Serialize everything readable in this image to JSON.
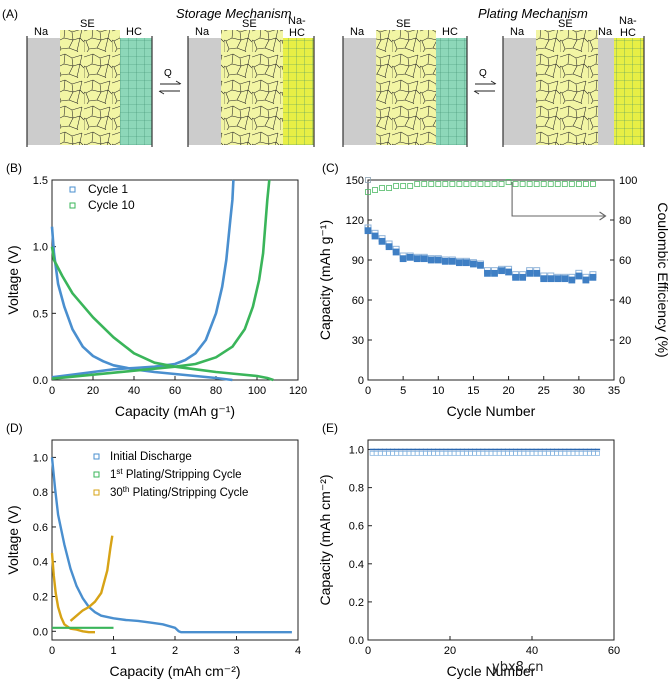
{
  "panel_a": {
    "label": "(A)",
    "storage_title": "Storage Mechanism",
    "plating_title": "Plating Mechanism",
    "na": "Na",
    "se": "SE",
    "hc": "HC",
    "na_hc": "Na-\nHC",
    "q": "Q",
    "colors": {
      "se": "#f2f5a4",
      "hc": "#8dd7b9",
      "na_hc": "#e8ef45",
      "na": "#cccccc"
    }
  },
  "chart_data": [
    {
      "id": "B",
      "panel_label": "(B)",
      "type": "scatter",
      "xlabel": "Capacity (mAh g⁻¹)",
      "ylabel": "Voltage (V)",
      "xlim": [
        0,
        120
      ],
      "ylim": [
        0,
        1.5
      ],
      "xticks": [
        0,
        20,
        40,
        60,
        80,
        100,
        120
      ],
      "yticks": [
        0.0,
        0.5,
        1.0,
        1.5
      ],
      "legend_position": "top-left",
      "series": [
        {
          "name": "Cycle 1",
          "color": "#4a8fcf",
          "discharge": [
            [
              0,
              1.15
            ],
            [
              1,
              0.95
            ],
            [
              3,
              0.72
            ],
            [
              6,
              0.55
            ],
            [
              10,
              0.38
            ],
            [
              15,
              0.25
            ],
            [
              20,
              0.18
            ],
            [
              25,
              0.14
            ],
            [
              30,
              0.11
            ],
            [
              40,
              0.08
            ],
            [
              50,
              0.06
            ],
            [
              60,
              0.045
            ],
            [
              70,
              0.03
            ],
            [
              80,
              0.015
            ],
            [
              88,
              0.0
            ]
          ],
          "charge": [
            [
              0,
              0.02
            ],
            [
              10,
              0.04
            ],
            [
              20,
              0.06
            ],
            [
              30,
              0.08
            ],
            [
              40,
              0.09
            ],
            [
              50,
              0.1
            ],
            [
              60,
              0.12
            ],
            [
              65,
              0.15
            ],
            [
              70,
              0.2
            ],
            [
              75,
              0.3
            ],
            [
              80,
              0.5
            ],
            [
              83,
              0.7
            ],
            [
              85,
              0.9
            ],
            [
              86,
              1.05
            ],
            [
              87,
              1.2
            ],
            [
              88,
              1.35
            ],
            [
              88.5,
              1.5
            ]
          ]
        },
        {
          "name": "Cycle 10",
          "color": "#3ab55a",
          "discharge": [
            [
              0,
              1.0
            ],
            [
              1,
              0.9
            ],
            [
              5,
              0.78
            ],
            [
              10,
              0.65
            ],
            [
              20,
              0.47
            ],
            [
              30,
              0.32
            ],
            [
              40,
              0.2
            ],
            [
              50,
              0.13
            ],
            [
              60,
              0.1
            ],
            [
              70,
              0.08
            ],
            [
              80,
              0.06
            ],
            [
              90,
              0.045
            ],
            [
              100,
              0.03
            ],
            [
              105,
              0.015
            ],
            [
              108,
              0.0
            ]
          ],
          "charge": [
            [
              0,
              0.01
            ],
            [
              20,
              0.04
            ],
            [
              40,
              0.07
            ],
            [
              60,
              0.1
            ],
            [
              70,
              0.12
            ],
            [
              80,
              0.17
            ],
            [
              88,
              0.25
            ],
            [
              94,
              0.38
            ],
            [
              98,
              0.55
            ],
            [
              101,
              0.75
            ],
            [
              103,
              0.95
            ],
            [
              104,
              1.15
            ],
            [
              105,
              1.35
            ],
            [
              106,
              1.5
            ]
          ]
        }
      ]
    },
    {
      "id": "C",
      "panel_label": "(C)",
      "type": "scatter",
      "xlabel": "Cycle Number",
      "ylabel": "Capacity (mAh g⁻¹)",
      "y2label": "Coulombic Efficiency (%)",
      "xlim": [
        0,
        35
      ],
      "ylim": [
        0,
        150
      ],
      "y2lim": [
        0,
        100
      ],
      "xticks": [
        0,
        5,
        10,
        15,
        20,
        25,
        30,
        35
      ],
      "yticks": [
        0,
        30,
        60,
        90,
        120,
        150
      ],
      "y2ticks": [
        0,
        20,
        40,
        60,
        80,
        100
      ],
      "capacity_color": "#3f7fc4",
      "ce_color": "#4fba66",
      "capacity_charge": [
        [
          0,
          112
        ],
        [
          1,
          108
        ],
        [
          2,
          104
        ],
        [
          3,
          100
        ],
        [
          4,
          96
        ],
        [
          5,
          91
        ],
        [
          6,
          92
        ],
        [
          7,
          91
        ],
        [
          8,
          91
        ],
        [
          9,
          90
        ],
        [
          10,
          90
        ],
        [
          11,
          89
        ],
        [
          12,
          89
        ],
        [
          13,
          88
        ],
        [
          14,
          88
        ],
        [
          15,
          87
        ],
        [
          16,
          86
        ],
        [
          17,
          80
        ],
        [
          18,
          80
        ],
        [
          19,
          82
        ],
        [
          20,
          81
        ],
        [
          21,
          77
        ],
        [
          22,
          77
        ],
        [
          23,
          80
        ],
        [
          24,
          80
        ],
        [
          25,
          76
        ],
        [
          26,
          76
        ],
        [
          27,
          76
        ],
        [
          28,
          76
        ],
        [
          29,
          75
        ],
        [
          30,
          78
        ],
        [
          31,
          75
        ],
        [
          32,
          77
        ]
      ],
      "capacity_discharge": [
        [
          0,
          114
        ],
        [
          1,
          110
        ],
        [
          2,
          106
        ],
        [
          3,
          102
        ],
        [
          4,
          98
        ],
        [
          5,
          93
        ],
        [
          6,
          93
        ],
        [
          7,
          92
        ],
        [
          8,
          92
        ],
        [
          9,
          91
        ],
        [
          10,
          91
        ],
        [
          11,
          90
        ],
        [
          12,
          90
        ],
        [
          13,
          89
        ],
        [
          14,
          89
        ],
        [
          15,
          88
        ],
        [
          16,
          87
        ],
        [
          17,
          82
        ],
        [
          18,
          82
        ],
        [
          19,
          83
        ],
        [
          20,
          83
        ],
        [
          21,
          79
        ],
        [
          22,
          79
        ],
        [
          23,
          82
        ],
        [
          24,
          82
        ],
        [
          25,
          78
        ],
        [
          26,
          78
        ],
        [
          27,
          77
        ],
        [
          28,
          77
        ],
        [
          29,
          77
        ],
        [
          30,
          80
        ],
        [
          31,
          77
        ],
        [
          32,
          79
        ]
      ],
      "coulombic_efficiency": [
        [
          0,
          94
        ],
        [
          1,
          95
        ],
        [
          2,
          96
        ],
        [
          3,
          96
        ],
        [
          4,
          97
        ],
        [
          5,
          97
        ],
        [
          6,
          97
        ],
        [
          7,
          98
        ],
        [
          8,
          98
        ],
        [
          9,
          98
        ],
        [
          10,
          98
        ],
        [
          11,
          98
        ],
        [
          12,
          98
        ],
        [
          13,
          98
        ],
        [
          14,
          98
        ],
        [
          15,
          98
        ],
        [
          16,
          98
        ],
        [
          17,
          98
        ],
        [
          18,
          98
        ],
        [
          19,
          98
        ],
        [
          20,
          99
        ],
        [
          21,
          98
        ],
        [
          22,
          98
        ],
        [
          23,
          98
        ],
        [
          24,
          98
        ],
        [
          25,
          98
        ],
        [
          26,
          98
        ],
        [
          27,
          98
        ],
        [
          28,
          98
        ],
        [
          29,
          98
        ],
        [
          30,
          98
        ],
        [
          31,
          98
        ],
        [
          32,
          98
        ]
      ],
      "outlier_ce": [
        0,
        100
      ]
    },
    {
      "id": "D",
      "panel_label": "(D)",
      "type": "scatter",
      "xlabel": "Capacity (mAh cm⁻²)",
      "ylabel": "Voltage (V)",
      "xlim": [
        0,
        4
      ],
      "ylim": [
        -0.05,
        1.1
      ],
      "xticks": [
        0,
        1,
        2,
        3,
        4
      ],
      "yticks": [
        0.0,
        0.2,
        0.4,
        0.6,
        0.8,
        1.0
      ],
      "legend_position": "top-right",
      "series": [
        {
          "name": "Initial Discharge",
          "color": "#4a8fcf",
          "points": [
            [
              0,
              1.0
            ],
            [
              0.05,
              0.82
            ],
            [
              0.1,
              0.67
            ],
            [
              0.2,
              0.5
            ],
            [
              0.3,
              0.36
            ],
            [
              0.4,
              0.26
            ],
            [
              0.5,
              0.19
            ],
            [
              0.6,
              0.14
            ],
            [
              0.7,
              0.11
            ],
            [
              0.8,
              0.09
            ],
            [
              1.0,
              0.075
            ],
            [
              1.2,
              0.065
            ],
            [
              1.4,
              0.06
            ],
            [
              1.6,
              0.05
            ],
            [
              1.8,
              0.04
            ],
            [
              2.0,
              0.02
            ],
            [
              2.06,
              0.0
            ],
            [
              2.1,
              -0.005
            ],
            [
              2.5,
              -0.005
            ],
            [
              3.0,
              -0.005
            ],
            [
              3.5,
              -0.005
            ],
            [
              3.9,
              -0.005
            ]
          ]
        },
        {
          "name": "1st Plating/Stripping Cycle",
          "sup": "st",
          "color": "#3ab55a",
          "points": [
            [
              0,
              0.02
            ],
            [
              0.2,
              0.02
            ],
            [
              0.4,
              0.02
            ],
            [
              0.6,
              0.02
            ],
            [
              0.8,
              0.02
            ],
            [
              1.0,
              0.02
            ]
          ]
        },
        {
          "name": "30th Plating/Stripping Cycle",
          "sup": "th",
          "color": "#d7a316",
          "points": [
            [
              0,
              0.45
            ],
            [
              0.03,
              0.32
            ],
            [
              0.06,
              0.22
            ],
            [
              0.1,
              0.14
            ],
            [
              0.15,
              0.08
            ],
            [
              0.2,
              0.04
            ],
            [
              0.3,
              0.015
            ],
            [
              0.4,
              0.01
            ],
            [
              0.5,
              0.0
            ],
            [
              0.6,
              -0.005
            ],
            [
              0.7,
              -0.005
            ],
            [
              0.3,
              0.06
            ],
            [
              0.4,
              0.09
            ],
            [
              0.5,
              0.12
            ],
            [
              0.6,
              0.14
            ],
            [
              0.7,
              0.17
            ],
            [
              0.8,
              0.22
            ],
            [
              0.9,
              0.35
            ],
            [
              0.95,
              0.48
            ],
            [
              0.98,
              0.55
            ]
          ]
        }
      ]
    },
    {
      "id": "E",
      "panel_label": "(E)",
      "type": "scatter",
      "xlabel": "Cycle Number",
      "ylabel": "Capacity (mAh cm⁻²)",
      "xlim": [
        0,
        60
      ],
      "ylim": [
        0,
        1.05
      ],
      "xticks": [
        0,
        20,
        40,
        60
      ],
      "yticks": [
        0.0,
        0.2,
        0.4,
        0.6,
        0.8,
        1.0
      ],
      "discharge_color": "#2a67b0",
      "charge_color": "#7fb0dd",
      "discharge_value": 1.0,
      "charge_value": 0.98,
      "n_cycles": 56
    }
  ],
  "watermark": "ybx8.cn"
}
